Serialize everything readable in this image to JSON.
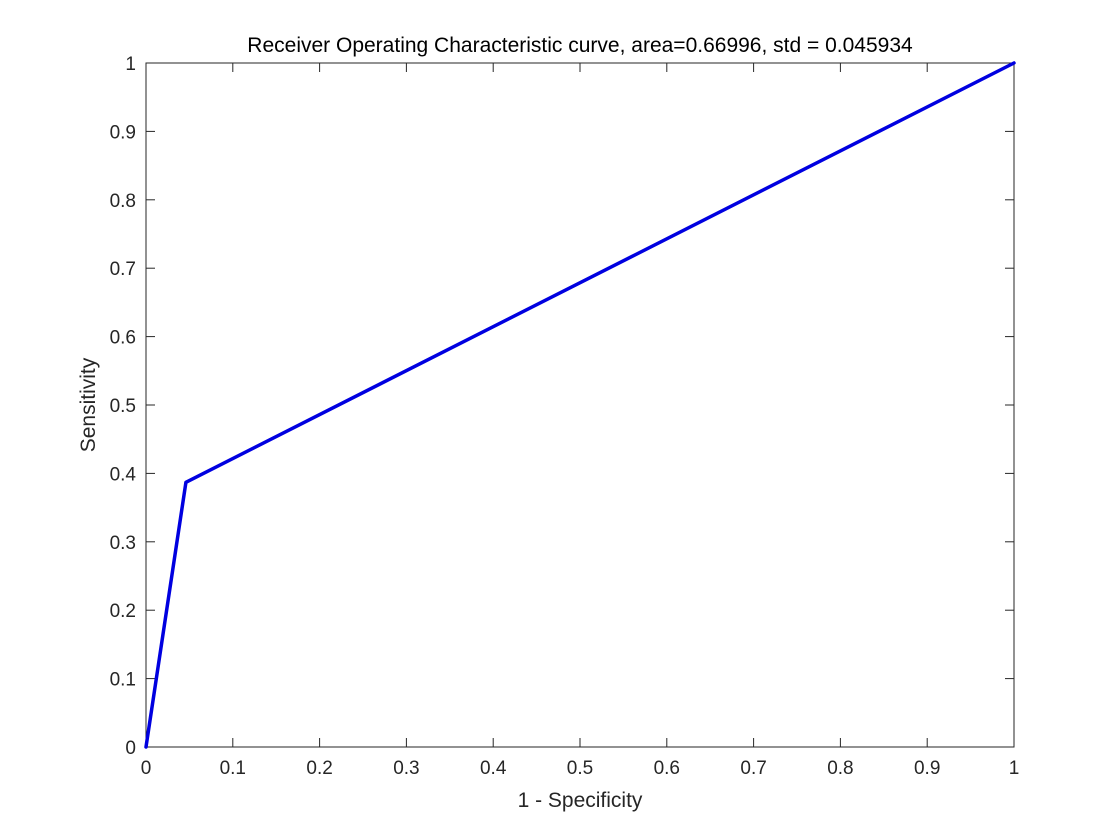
{
  "chart_data": {
    "type": "line",
    "title": "Receiver Operating Characteristic curve, area=0.66996, std = 0.045934",
    "xlabel": "1 - Specificity",
    "ylabel": "Sensitivity",
    "xlim": [
      0,
      1
    ],
    "ylim": [
      0,
      1
    ],
    "xticks": [
      0,
      0.1,
      0.2,
      0.3,
      0.4,
      0.5,
      0.6,
      0.7,
      0.8,
      0.9,
      1
    ],
    "yticks": [
      0,
      0.1,
      0.2,
      0.3,
      0.4,
      0.5,
      0.6,
      0.7,
      0.8,
      0.9,
      1
    ],
    "xtick_labels": [
      "0",
      "0.1",
      "0.2",
      "0.3",
      "0.4",
      "0.5",
      "0.6",
      "0.7",
      "0.8",
      "0.9",
      "1"
    ],
    "ytick_labels": [
      "0",
      "0.1",
      "0.2",
      "0.3",
      "0.4",
      "0.5",
      "0.6",
      "0.7",
      "0.8",
      "0.9",
      "1"
    ],
    "grid": false,
    "box": true,
    "series": [
      {
        "color": "#0000e0",
        "x": [
          0,
          0.046,
          1
        ],
        "y": [
          0,
          0.387,
          1
        ]
      }
    ]
  }
}
